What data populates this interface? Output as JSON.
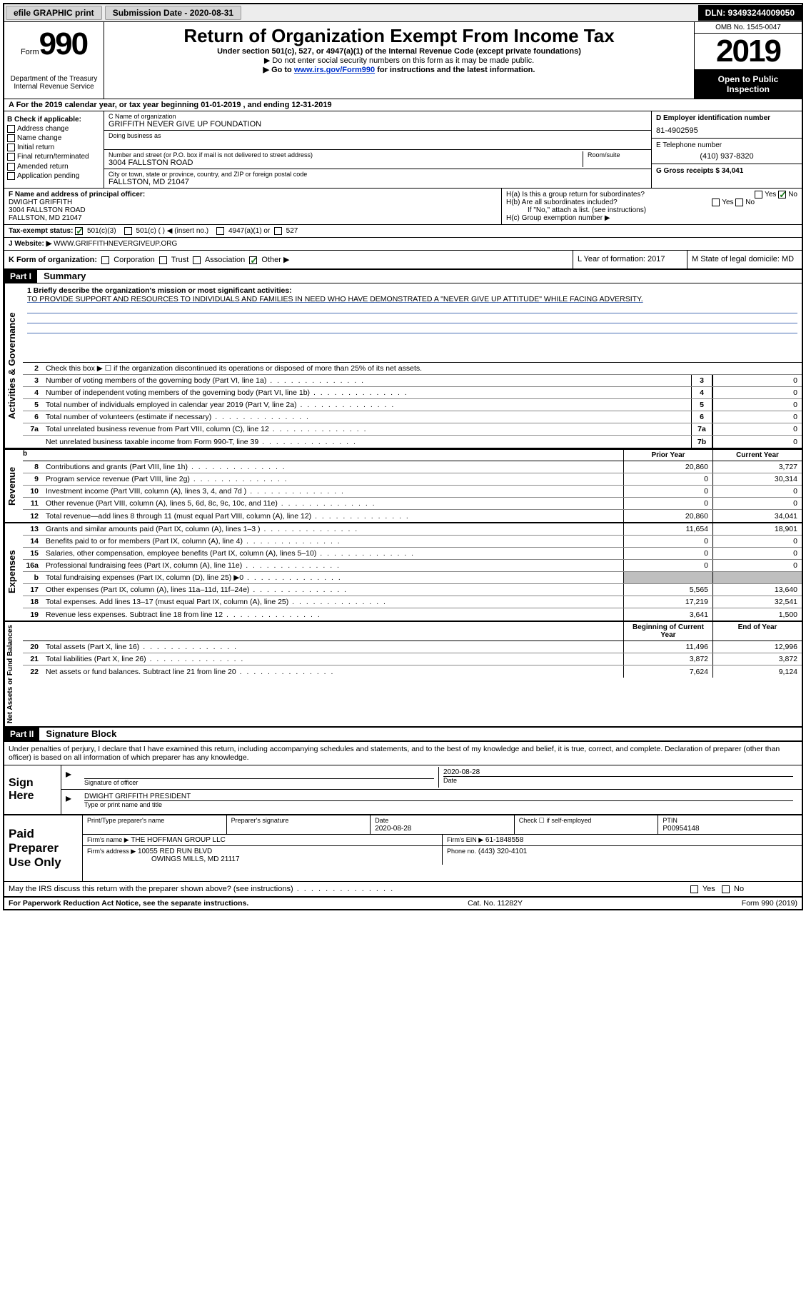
{
  "topbar": {
    "efile": "efile GRAPHIC print",
    "submission_label": "Submission Date - 2020-08-31",
    "dln": "DLN: 93493244009050"
  },
  "header": {
    "form_word": "Form",
    "form_number": "990",
    "dept": "Department of the Treasury\nInternal Revenue Service",
    "main_title": "Return of Organization Exempt From Income Tax",
    "sub1": "Under section 501(c), 527, or 4947(a)(1) of the Internal Revenue Code (except private foundations)",
    "sub2": "▶ Do not enter social security numbers on this form as it may be made public.",
    "sub3_pre": "▶ Go to ",
    "sub3_link": "www.irs.gov/Form990",
    "sub3_post": " for instructions and the latest information.",
    "omb": "OMB No. 1545-0047",
    "year": "2019",
    "inspection": "Open to Public Inspection"
  },
  "row_a": "A For the 2019 calendar year, or tax year beginning 01-01-2019    , and ending 12-31-2019",
  "checks": {
    "header": "B Check if applicable:",
    "items": [
      "Address change",
      "Name change",
      "Initial return",
      "Final return/terminated",
      "Amended return",
      "Application pending"
    ]
  },
  "org": {
    "name_label": "C Name of organization",
    "name": "GRIFFITH NEVER GIVE UP FOUNDATION",
    "dba_label": "Doing business as",
    "addr_label": "Number and street (or P.O. box if mail is not delivered to street address)",
    "room_label": "Room/suite",
    "addr": "3004 FALLSTON ROAD",
    "city_label": "City or town, state or province, country, and ZIP or foreign postal code",
    "city": "FALLSTON, MD  21047"
  },
  "right_ident": {
    "ein_label": "D Employer identification number",
    "ein": "81-4902595",
    "phone_label": "E Telephone number",
    "phone": "(410) 937-8320",
    "gross_label": "G Gross receipts $ 34,041"
  },
  "officer": {
    "label": "F  Name and address of principal officer:",
    "name": "DWIGHT GRIFFITH",
    "addr1": "3004 FALLSTON ROAD",
    "addr2": "FALLSTON, MD  21047"
  },
  "group": {
    "ha": "H(a)  Is this a group return for subordinates?",
    "hb": "H(b)  Are all subordinates included?",
    "hb_note": "If \"No,\" attach a list. (see instructions)",
    "hc": "H(c)  Group exemption number ▶",
    "yes": "Yes",
    "no": "No"
  },
  "tax_status": {
    "label": "Tax-exempt status:",
    "o1": "501(c)(3)",
    "o2": "501(c) (  ) ◀ (insert no.)",
    "o3": "4947(a)(1) or",
    "o4": "527"
  },
  "website": {
    "label": "J   Website: ▶",
    "val": "WWW.GRIFFITHNEVERGIVEUP.ORG"
  },
  "form_org": {
    "label": "K Form of organization:",
    "opts": [
      "Corporation",
      "Trust",
      "Association",
      "Other ▶"
    ],
    "year_label": "L Year of formation: 2017",
    "state_label": "M State of legal domicile: MD"
  },
  "part1": {
    "header": "Part I",
    "title": "Summary",
    "mission_label": "1  Briefly describe the organization's mission or most significant activities:",
    "mission": "TO PROVIDE SUPPORT AND RESOURCES TO INDIVIDUALS AND FAMILIES IN NEED WHO HAVE DEMONSTRATED A \"NEVER GIVE UP ATTITUDE\" WHILE FACING ADVERSITY.",
    "line2": "Check this box ▶ ☐  if the organization discontinued its operations or disposed of more than 25% of its net assets.",
    "prior_header": "Prior Year",
    "current_header": "Current Year",
    "begin_header": "Beginning of Current Year",
    "end_header": "End of Year"
  },
  "governance": {
    "label": "Activities & Governance",
    "lines": [
      {
        "n": "3",
        "d": "Number of voting members of the governing body (Part VI, line 1a)",
        "box": "3",
        "v": "0"
      },
      {
        "n": "4",
        "d": "Number of independent voting members of the governing body (Part VI, line 1b)",
        "box": "4",
        "v": "0"
      },
      {
        "n": "5",
        "d": "Total number of individuals employed in calendar year 2019 (Part V, line 2a)",
        "box": "5",
        "v": "0"
      },
      {
        "n": "6",
        "d": "Total number of volunteers (estimate if necessary)",
        "box": "6",
        "v": "0"
      },
      {
        "n": "7a",
        "d": "Total unrelated business revenue from Part VIII, column (C), line 12",
        "box": "7a",
        "v": "0"
      },
      {
        "n": "",
        "d": "Net unrelated business taxable income from Form 990-T, line 39",
        "box": "7b",
        "v": "0"
      }
    ]
  },
  "revenue": {
    "label": "Revenue",
    "lines": [
      {
        "n": "8",
        "d": "Contributions and grants (Part VIII, line 1h)",
        "py": "20,860",
        "cy": "3,727"
      },
      {
        "n": "9",
        "d": "Program service revenue (Part VIII, line 2g)",
        "py": "0",
        "cy": "30,314"
      },
      {
        "n": "10",
        "d": "Investment income (Part VIII, column (A), lines 3, 4, and 7d )",
        "py": "0",
        "cy": "0"
      },
      {
        "n": "11",
        "d": "Other revenue (Part VIII, column (A), lines 5, 6d, 8c, 9c, 10c, and 11e)",
        "py": "0",
        "cy": "0"
      },
      {
        "n": "12",
        "d": "Total revenue—add lines 8 through 11 (must equal Part VIII, column (A), line 12)",
        "py": "20,860",
        "cy": "34,041"
      }
    ]
  },
  "expenses": {
    "label": "Expenses",
    "lines": [
      {
        "n": "13",
        "d": "Grants and similar amounts paid (Part IX, column (A), lines 1–3 )",
        "py": "11,654",
        "cy": "18,901"
      },
      {
        "n": "14",
        "d": "Benefits paid to or for members (Part IX, column (A), line 4)",
        "py": "0",
        "cy": "0"
      },
      {
        "n": "15",
        "d": "Salaries, other compensation, employee benefits (Part IX, column (A), lines 5–10)",
        "py": "0",
        "cy": "0"
      },
      {
        "n": "16a",
        "d": "Professional fundraising fees (Part IX, column (A), line 11e)",
        "py": "0",
        "cy": "0"
      },
      {
        "n": "b",
        "d": "Total fundraising expenses (Part IX, column (D), line 25) ▶0",
        "py": "",
        "cy": "",
        "shaded": true
      },
      {
        "n": "17",
        "d": "Other expenses (Part IX, column (A), lines 11a–11d, 11f–24e)",
        "py": "5,565",
        "cy": "13,640"
      },
      {
        "n": "18",
        "d": "Total expenses. Add lines 13–17 (must equal Part IX, column (A), line 25)",
        "py": "17,219",
        "cy": "32,541"
      },
      {
        "n": "19",
        "d": "Revenue less expenses. Subtract line 18 from line 12",
        "py": "3,641",
        "cy": "1,500"
      }
    ]
  },
  "netassets": {
    "label": "Net Assets or Fund Balances",
    "lines": [
      {
        "n": "20",
        "d": "Total assets (Part X, line 16)",
        "py": "11,496",
        "cy": "12,996"
      },
      {
        "n": "21",
        "d": "Total liabilities (Part X, line 26)",
        "py": "3,872",
        "cy": "3,872"
      },
      {
        "n": "22",
        "d": "Net assets or fund balances. Subtract line 21 from line 20",
        "py": "7,624",
        "cy": "9,124"
      }
    ]
  },
  "part2": {
    "header": "Part II",
    "title": "Signature Block",
    "declaration": "Under penalties of perjury, I declare that I have examined this return, including accompanying schedules and statements, and to the best of my knowledge and belief, it is true, correct, and complete. Declaration of preparer (other than officer) is based on all information of which preparer has any knowledge."
  },
  "sign": {
    "label": "Sign Here",
    "sig_label": "Signature of officer",
    "date_label": "Date",
    "date": "2020-08-28",
    "name": "DWIGHT GRIFFITH  PRESIDENT",
    "name_label": "Type or print name and title"
  },
  "preparer": {
    "label": "Paid Preparer Use Only",
    "name_label": "Print/Type preparer's name",
    "sig_label": "Preparer's signature",
    "date_label": "Date",
    "date": "2020-08-28",
    "check_label": "Check ☐ if self-employed",
    "ptin_label": "PTIN",
    "ptin": "P00954148",
    "firm_name_label": "Firm's name    ▶",
    "firm_name": "THE HOFFMAN GROUP LLC",
    "firm_ein_label": "Firm's EIN ▶",
    "firm_ein": "61-1848558",
    "firm_addr_label": "Firm's address ▶",
    "firm_addr1": "10055 RED RUN BLVD",
    "firm_addr2": "OWINGS MILLS, MD  21117",
    "phone_label": "Phone no.",
    "phone": "(443) 320-4101"
  },
  "discuss": "May the IRS discuss this return with the preparer shown above? (see instructions)",
  "footer": {
    "left": "For Paperwork Reduction Act Notice, see the separate instructions.",
    "mid": "Cat. No. 11282Y",
    "right": "Form 990 (2019)"
  }
}
